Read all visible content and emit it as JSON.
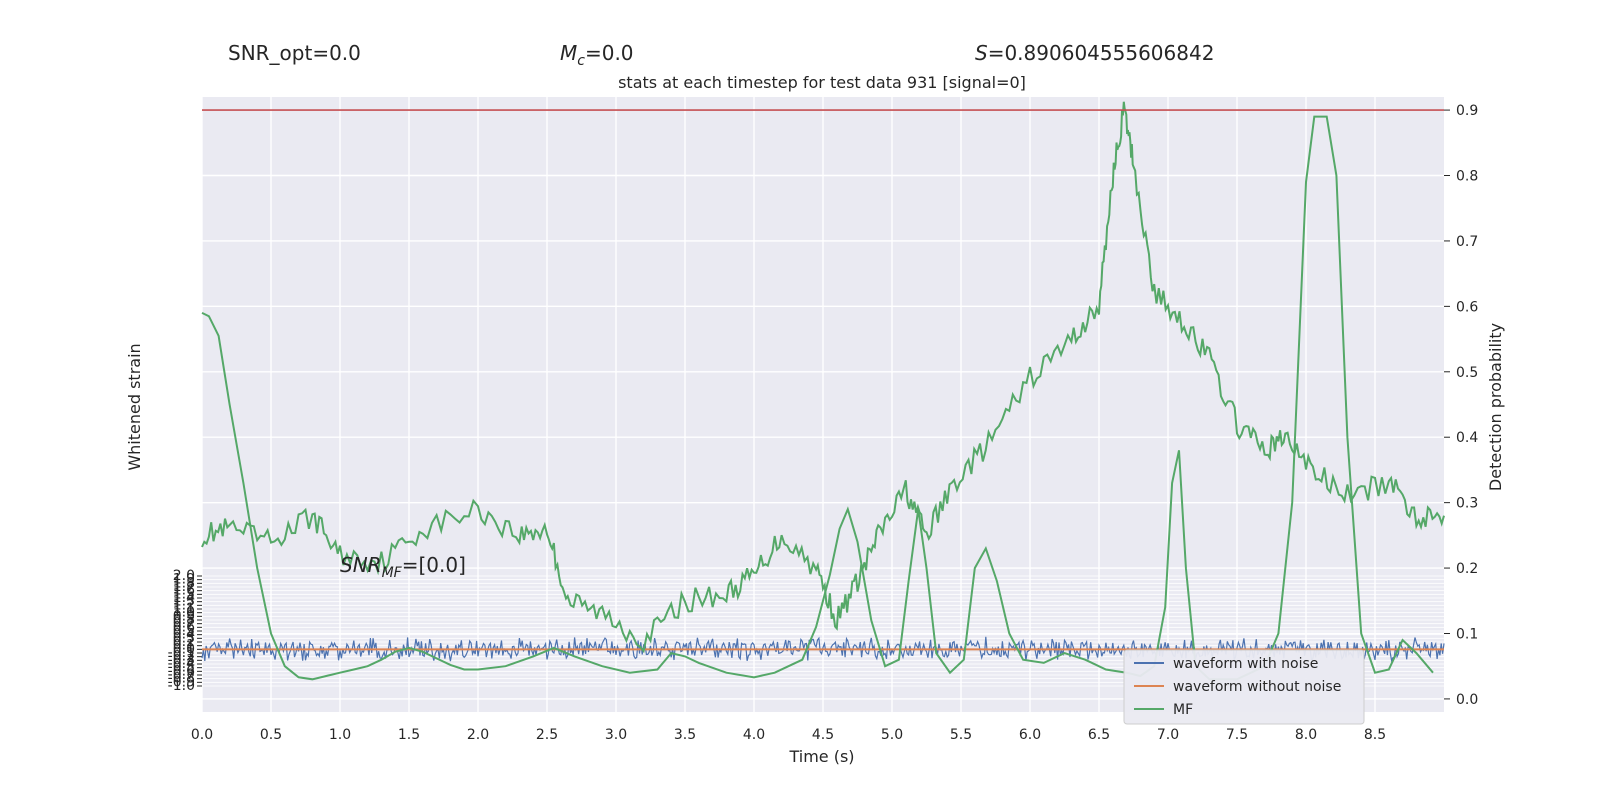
{
  "header": {
    "snr_opt": "SNR_opt=0.0",
    "mc_symbol": "M",
    "mc_sub": "c",
    "mc_value": "=0.0",
    "s_symbol": "S",
    "s_value": "=0.890604555606842"
  },
  "chart_data": {
    "type": "line",
    "title": "stats at each timestep for test data 931 [signal=0]",
    "xlabel": "Time (s)",
    "ylabel_left": "Whitened strain",
    "ylabel_right": "Detection probability",
    "xlim": [
      0.0,
      9.0
    ],
    "ylim_right": [
      -0.02,
      0.92
    ],
    "ylim_left": [
      -1.0,
      2.0
    ],
    "x_ticks": [
      "0.0",
      "0.5",
      "1.0",
      "1.5",
      "2.0",
      "2.5",
      "3.0",
      "3.5",
      "4.0",
      "4.5",
      "5.0",
      "5.5",
      "6.0",
      "6.5",
      "7.0",
      "7.5",
      "8.0",
      "8.5"
    ],
    "y_right_ticks": [
      "0.0",
      "0.1",
      "0.2",
      "0.3",
      "0.4",
      "0.5",
      "0.6",
      "0.7",
      "0.8",
      "0.9"
    ],
    "y_left_ticks": [
      "-1.0",
      "-0.9",
      "-0.8",
      "-0.7",
      "-0.6",
      "-0.5",
      "-0.4",
      "-0.3",
      "-0.2",
      "-0.1",
      "0.0",
      "0.1",
      "0.2",
      "0.3",
      "0.4",
      "0.5",
      "0.6",
      "0.7",
      "0.8",
      "0.9",
      "1.0",
      "1.1",
      "1.2",
      "1.3",
      "1.4",
      "1.5",
      "1.6",
      "1.7",
      "1.8",
      "1.9",
      "2.0"
    ],
    "threshold": 0.9,
    "snr_mf_label": "SNR",
    "snr_mf_sub": "MF",
    "snr_mf_value": "=[0.0]",
    "grid": true,
    "legend_position": "lower-right",
    "colors": {
      "noise": "#4c72b0",
      "clean": "#dd8452",
      "mf": "#55a868",
      "prob": "#55a868",
      "threshold": "#c44e52",
      "panel_bg": "#eaeaf2"
    },
    "series": [
      {
        "name": "waveform with noise",
        "kind": "noise-band",
        "center": 0.0,
        "amplitude": 0.25
      },
      {
        "name": "waveform without noise",
        "values": [
          [
            0.0,
            0.0
          ],
          [
            9.0,
            0.0
          ]
        ]
      },
      {
        "name": "MF",
        "values": [
          [
            0.0,
            0.59
          ],
          [
            0.05,
            0.585
          ],
          [
            0.12,
            0.555
          ],
          [
            0.2,
            0.45
          ],
          [
            0.3,
            0.33
          ],
          [
            0.4,
            0.2
          ],
          [
            0.5,
            0.1
          ],
          [
            0.6,
            0.05
          ],
          [
            0.7,
            0.033
          ],
          [
            0.8,
            0.03
          ],
          [
            0.9,
            0.035
          ],
          [
            1.0,
            0.04
          ],
          [
            1.1,
            0.045
          ],
          [
            1.2,
            0.05
          ],
          [
            1.3,
            0.06
          ],
          [
            1.4,
            0.072
          ],
          [
            1.5,
            0.078
          ],
          [
            1.6,
            0.072
          ],
          [
            1.7,
            0.062
          ],
          [
            1.8,
            0.052
          ],
          [
            1.9,
            0.045
          ],
          [
            2.0,
            0.045
          ],
          [
            2.2,
            0.05
          ],
          [
            2.4,
            0.065
          ],
          [
            2.55,
            0.078
          ],
          [
            2.7,
            0.065
          ],
          [
            2.9,
            0.05
          ],
          [
            3.1,
            0.04
          ],
          [
            3.3,
            0.045
          ],
          [
            3.4,
            0.07
          ],
          [
            3.5,
            0.065
          ],
          [
            3.6,
            0.055
          ],
          [
            3.8,
            0.04
          ],
          [
            4.0,
            0.033
          ],
          [
            4.15,
            0.04
          ],
          [
            4.35,
            0.06
          ],
          [
            4.45,
            0.11
          ],
          [
            4.55,
            0.19
          ],
          [
            4.62,
            0.26
          ],
          [
            4.68,
            0.29
          ],
          [
            4.75,
            0.24
          ],
          [
            4.85,
            0.12
          ],
          [
            4.95,
            0.05
          ],
          [
            5.05,
            0.06
          ],
          [
            5.12,
            0.18
          ],
          [
            5.19,
            0.29
          ],
          [
            5.25,
            0.2
          ],
          [
            5.32,
            0.07
          ],
          [
            5.42,
            0.04
          ],
          [
            5.52,
            0.06
          ],
          [
            5.6,
            0.2
          ],
          [
            5.68,
            0.23
          ],
          [
            5.76,
            0.18
          ],
          [
            5.85,
            0.1
          ],
          [
            5.95,
            0.06
          ],
          [
            6.1,
            0.055
          ],
          [
            6.25,
            0.07
          ],
          [
            6.4,
            0.06
          ],
          [
            6.55,
            0.045
          ],
          [
            6.7,
            0.04
          ],
          [
            6.8,
            0.035
          ],
          [
            6.9,
            0.05
          ],
          [
            6.98,
            0.14
          ],
          [
            7.03,
            0.33
          ],
          [
            7.08,
            0.38
          ],
          [
            7.13,
            0.2
          ],
          [
            7.2,
            0.05
          ],
          [
            7.3,
            0.03
          ],
          [
            7.5,
            0.03
          ],
          [
            7.7,
            0.05
          ],
          [
            7.8,
            0.1
          ],
          [
            7.9,
            0.3
          ],
          [
            8.0,
            0.79
          ],
          [
            8.06,
            0.89
          ],
          [
            8.15,
            0.89
          ],
          [
            8.22,
            0.8
          ],
          [
            8.3,
            0.4
          ],
          [
            8.4,
            0.1
          ],
          [
            8.5,
            0.04
          ],
          [
            8.6,
            0.045
          ],
          [
            8.7,
            0.09
          ],
          [
            8.8,
            0.07
          ],
          [
            8.92,
            0.04
          ]
        ]
      },
      {
        "kind": "probability",
        "values": [
          [
            0.0,
            0.25
          ],
          [
            0.2,
            0.26
          ],
          [
            0.5,
            0.24
          ],
          [
            0.8,
            0.28
          ],
          [
            1.0,
            0.22
          ],
          [
            1.3,
            0.21
          ],
          [
            1.6,
            0.26
          ],
          [
            2.0,
            0.29
          ],
          [
            2.3,
            0.25
          ],
          [
            2.5,
            0.26
          ],
          [
            2.65,
            0.15
          ],
          [
            2.9,
            0.13
          ],
          [
            3.2,
            0.09
          ],
          [
            3.5,
            0.15
          ],
          [
            3.8,
            0.16
          ],
          [
            4.0,
            0.19
          ],
          [
            4.2,
            0.25
          ],
          [
            4.45,
            0.2
          ],
          [
            4.6,
            0.12
          ],
          [
            4.75,
            0.18
          ],
          [
            4.9,
            0.25
          ],
          [
            5.1,
            0.32
          ],
          [
            5.25,
            0.25
          ],
          [
            5.45,
            0.33
          ],
          [
            5.7,
            0.39
          ],
          [
            6.0,
            0.49
          ],
          [
            6.3,
            0.55
          ],
          [
            6.5,
            0.6
          ],
          [
            6.6,
            0.8
          ],
          [
            6.68,
            0.9
          ],
          [
            6.75,
            0.82
          ],
          [
            6.9,
            0.62
          ],
          [
            7.1,
            0.58
          ],
          [
            7.3,
            0.52
          ],
          [
            7.5,
            0.42
          ],
          [
            7.7,
            0.38
          ],
          [
            7.85,
            0.4
          ],
          [
            8.05,
            0.35
          ],
          [
            8.3,
            0.31
          ],
          [
            8.6,
            0.33
          ],
          [
            8.8,
            0.28
          ],
          [
            9.0,
            0.28
          ]
        ]
      }
    ]
  }
}
